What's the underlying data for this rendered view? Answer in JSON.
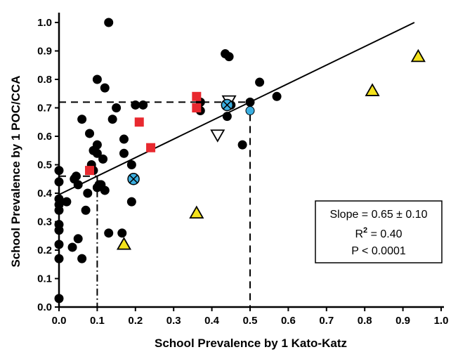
{
  "chart_data": {
    "type": "scatter",
    "title": "",
    "xlabel": "School Prevalence by 1 Kato-Katz",
    "ylabel": "School Prevalence by 1 POC/CCA",
    "xlim": [
      0.0,
      1.0
    ],
    "ylim": [
      0.0,
      1.0
    ],
    "x_ticks": [
      "0.0",
      "0.1",
      "0.2",
      "0.3",
      "0.4",
      "0.5",
      "0.6",
      "0.7",
      "0.8",
      "0.9",
      "1.0"
    ],
    "y_ticks": [
      "0.0",
      "0.1",
      "0.2",
      "0.3",
      "0.4",
      "0.5",
      "0.6",
      "0.7",
      "0.8",
      "0.9",
      "1.0"
    ],
    "grid": false,
    "stats_box": {
      "slope": "Slope = 0.65 ± 0.10",
      "r2_prefix": "R",
      "r2_sup": "2",
      "r2_value": " = 0.40",
      "p": "P < 0.0001"
    },
    "regression_line": {
      "x": [
        0.0,
        0.93
      ],
      "y": [
        0.395,
        1.0
      ]
    },
    "reference_lines": [
      {
        "x": 0.1,
        "y": 0.46
      },
      {
        "x": 0.5,
        "y": 0.72
      }
    ],
    "series": [
      {
        "marker": "circle",
        "color": "#000000",
        "points": [
          [
            0.0,
            0.03
          ],
          [
            0.0,
            0.17
          ],
          [
            0.0,
            0.22
          ],
          [
            0.0,
            0.27
          ],
          [
            0.0,
            0.29
          ],
          [
            0.0,
            0.34
          ],
          [
            0.0,
            0.36
          ],
          [
            0.0,
            0.38
          ],
          [
            0.0,
            0.44
          ],
          [
            0.0,
            0.48
          ],
          [
            0.02,
            0.37
          ],
          [
            0.035,
            0.21
          ],
          [
            0.04,
            0.45
          ],
          [
            0.045,
            0.46
          ],
          [
            0.05,
            0.43
          ],
          [
            0.05,
            0.24
          ],
          [
            0.06,
            0.17
          ],
          [
            0.06,
            0.66
          ],
          [
            0.07,
            0.34
          ],
          [
            0.075,
            0.4
          ],
          [
            0.08,
            0.61
          ],
          [
            0.085,
            0.5
          ],
          [
            0.09,
            0.48
          ],
          [
            0.09,
            0.55
          ],
          [
            0.1,
            0.54
          ],
          [
            0.1,
            0.57
          ],
          [
            0.1,
            0.42
          ],
          [
            0.105,
            0.43
          ],
          [
            0.11,
            0.43
          ],
          [
            0.115,
            0.52
          ],
          [
            0.12,
            0.41
          ],
          [
            0.12,
            0.77
          ],
          [
            0.1,
            0.8
          ],
          [
            0.13,
            1.0
          ],
          [
            0.13,
            0.26
          ],
          [
            0.14,
            0.66
          ],
          [
            0.15,
            0.7
          ],
          [
            0.165,
            0.26
          ],
          [
            0.17,
            0.54
          ],
          [
            0.17,
            0.59
          ],
          [
            0.19,
            0.37
          ],
          [
            0.19,
            0.5
          ],
          [
            0.2,
            0.71
          ],
          [
            0.22,
            0.71
          ],
          [
            0.37,
            0.69
          ],
          [
            0.37,
            0.72
          ],
          [
            0.435,
            0.89
          ],
          [
            0.445,
            0.88
          ],
          [
            0.45,
            0.71
          ],
          [
            0.44,
            0.67
          ],
          [
            0.48,
            0.57
          ],
          [
            0.5,
            0.72
          ],
          [
            0.525,
            0.79
          ],
          [
            0.57,
            0.74
          ]
        ]
      },
      {
        "marker": "square",
        "color": "#e8292f",
        "points": [
          [
            0.08,
            0.48
          ],
          [
            0.21,
            0.65
          ],
          [
            0.24,
            0.56
          ],
          [
            0.36,
            0.7
          ],
          [
            0.36,
            0.74
          ]
        ]
      },
      {
        "marker": "triangle-up",
        "color": "#f4e21c",
        "points": [
          [
            0.17,
            0.22
          ],
          [
            0.36,
            0.33
          ],
          [
            0.82,
            0.76
          ],
          [
            0.94,
            0.88
          ]
        ]
      },
      {
        "marker": "triangle-down",
        "color": "#ffffff",
        "points": [
          [
            0.415,
            0.605
          ],
          [
            0.445,
            0.725
          ]
        ]
      },
      {
        "marker": "circle-x",
        "color": "#3aaee0",
        "points": [
          [
            0.195,
            0.45
          ],
          [
            0.44,
            0.71
          ]
        ]
      },
      {
        "marker": "circle",
        "color": "#3aaee0",
        "points": [
          [
            0.5,
            0.69
          ]
        ]
      }
    ]
  }
}
